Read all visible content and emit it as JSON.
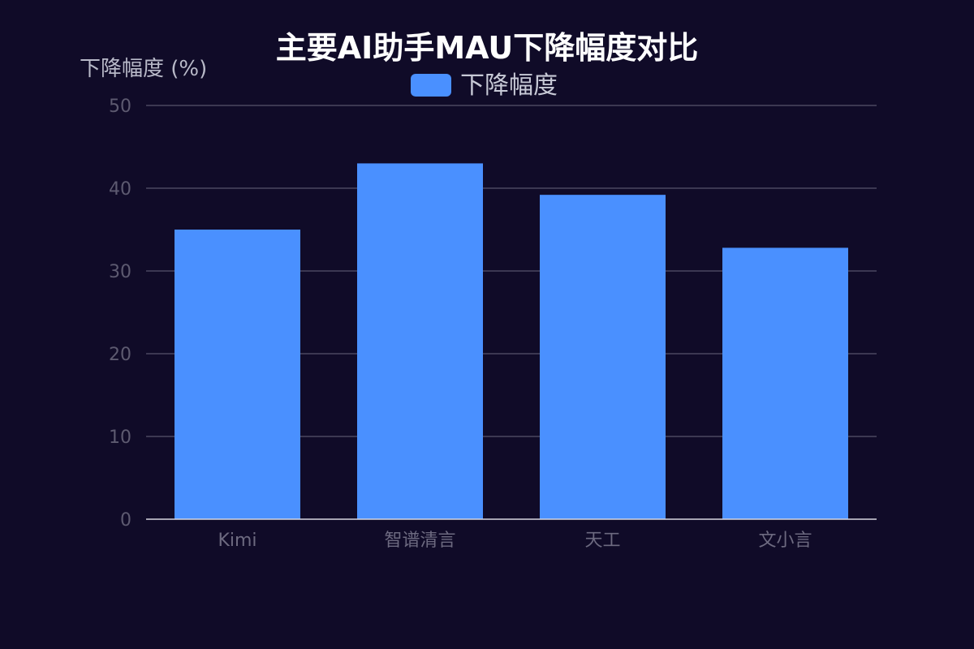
{
  "chart_data": {
    "type": "bar",
    "title": "主要AI助手MAU下降幅度对比",
    "ylabel": "下降幅度 (%)",
    "xlabel": "",
    "categories": [
      "Kimi",
      "智谱清言",
      "天工",
      "文小言"
    ],
    "series": [
      {
        "name": "下降幅度",
        "values": [
          35,
          43,
          39.2,
          32.8
        ]
      }
    ],
    "ylim": [
      0,
      50
    ],
    "yticks": [
      0,
      10,
      20,
      30,
      40,
      50
    ],
    "grid": true,
    "legend": "top-center",
    "colors": {
      "background": "#100b28",
      "bar": "#4a90ff",
      "grid": "#4a4760",
      "axis": "#d8d8e0"
    }
  }
}
